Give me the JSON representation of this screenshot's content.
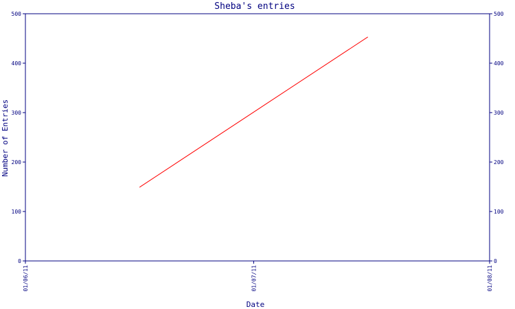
{
  "chart_data": {
    "type": "line",
    "title": "Sheba's entries",
    "xlabel": "Date",
    "ylabel": "Number of Entries",
    "x_ticks": [
      "01/06/11",
      "01/07/11",
      "01/08/11"
    ],
    "ylim": [
      0,
      500
    ],
    "y_ticks": [
      "0",
      "100",
      "200",
      "300",
      "400",
      "500"
    ],
    "grid": false,
    "series": [
      {
        "x": [
          "2011-06-16",
          "2011-07-16"
        ],
        "values": [
          149,
          453
        ]
      }
    ],
    "colors": {
      "axis": "#000080",
      "line": "#ff0000"
    }
  }
}
